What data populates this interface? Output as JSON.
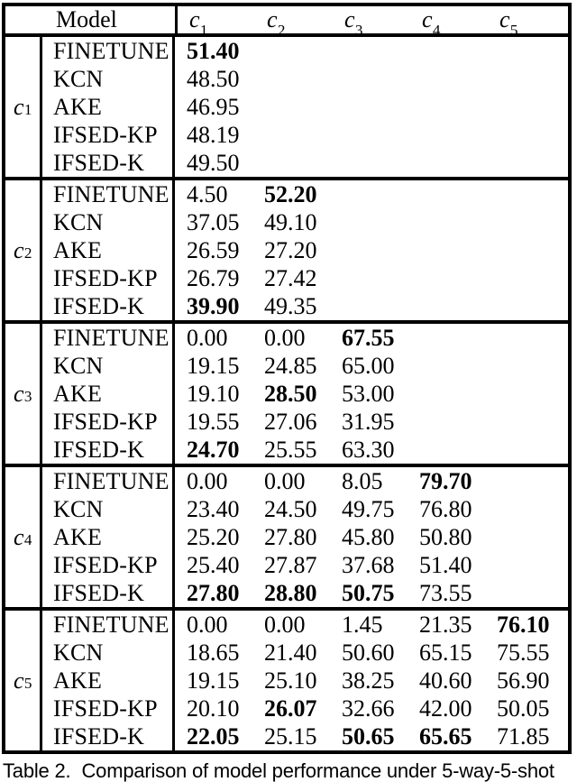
{
  "colors": {
    "background": "#ffffff",
    "text": "#000000",
    "border": "#000000"
  },
  "table": {
    "header": {
      "model_label": "Model",
      "cols": [
        {
          "base": "c",
          "sub": "1"
        },
        {
          "base": "c",
          "sub": "2"
        },
        {
          "base": "c",
          "sub": "3"
        },
        {
          "base": "c",
          "sub": "4"
        },
        {
          "base": "c",
          "sub": "5"
        }
      ]
    },
    "groups": [
      {
        "label": {
          "base": "c",
          "sub": "1"
        },
        "rows": [
          {
            "model": "FINETUNE",
            "cells": [
              {
                "v": "51.40",
                "bold": true
              }
            ]
          },
          {
            "model": "KCN",
            "cells": [
              {
                "v": "48.50",
                "bold": false
              }
            ]
          },
          {
            "model": "AKE",
            "cells": [
              {
                "v": "46.95",
                "bold": false
              }
            ]
          },
          {
            "model": "IFSED-KP",
            "cells": [
              {
                "v": "48.19",
                "bold": false
              }
            ]
          },
          {
            "model": "IFSED-K",
            "cells": [
              {
                "v": "49.50",
                "bold": false
              }
            ]
          }
        ]
      },
      {
        "label": {
          "base": "c",
          "sub": "2"
        },
        "rows": [
          {
            "model": "FINETUNE",
            "cells": [
              {
                "v": "4.50",
                "bold": false
              },
              {
                "v": "52.20",
                "bold": true
              }
            ]
          },
          {
            "model": "KCN",
            "cells": [
              {
                "v": "37.05",
                "bold": false
              },
              {
                "v": "49.10",
                "bold": false
              }
            ]
          },
          {
            "model": "AKE",
            "cells": [
              {
                "v": "26.59",
                "bold": false
              },
              {
                "v": "27.20",
                "bold": false
              }
            ]
          },
          {
            "model": "IFSED-KP",
            "cells": [
              {
                "v": "26.79",
                "bold": false
              },
              {
                "v": "27.42",
                "bold": false
              }
            ]
          },
          {
            "model": "IFSED-K",
            "cells": [
              {
                "v": "39.90",
                "bold": true
              },
              {
                "v": "49.35",
                "bold": false
              }
            ]
          }
        ]
      },
      {
        "label": {
          "base": "c",
          "sub": "3"
        },
        "rows": [
          {
            "model": "FINETUNE",
            "cells": [
              {
                "v": "0.00",
                "bold": false
              },
              {
                "v": "0.00",
                "bold": false
              },
              {
                "v": "67.55",
                "bold": true
              }
            ]
          },
          {
            "model": "KCN",
            "cells": [
              {
                "v": "19.15",
                "bold": false
              },
              {
                "v": "24.85",
                "bold": false
              },
              {
                "v": "65.00",
                "bold": false
              }
            ]
          },
          {
            "model": "AKE",
            "cells": [
              {
                "v": "19.10",
                "bold": false
              },
              {
                "v": "28.50",
                "bold": true
              },
              {
                "v": "53.00",
                "bold": false
              }
            ]
          },
          {
            "model": "IFSED-KP",
            "cells": [
              {
                "v": "19.55",
                "bold": false
              },
              {
                "v": "27.06",
                "bold": false
              },
              {
                "v": "31.95",
                "bold": false
              }
            ]
          },
          {
            "model": "IFSED-K",
            "cells": [
              {
                "v": "24.70",
                "bold": true
              },
              {
                "v": "25.55",
                "bold": false
              },
              {
                "v": "63.30",
                "bold": false
              }
            ]
          }
        ]
      },
      {
        "label": {
          "base": "c",
          "sub": "4"
        },
        "rows": [
          {
            "model": "FINETUNE",
            "cells": [
              {
                "v": "0.00",
                "bold": false
              },
              {
                "v": "0.00",
                "bold": false
              },
              {
                "v": "8.05",
                "bold": false
              },
              {
                "v": "79.70",
                "bold": true
              }
            ]
          },
          {
            "model": "KCN",
            "cells": [
              {
                "v": "23.40",
                "bold": false
              },
              {
                "v": "24.50",
                "bold": false
              },
              {
                "v": "49.75",
                "bold": false
              },
              {
                "v": "76.80",
                "bold": false
              }
            ]
          },
          {
            "model": "AKE",
            "cells": [
              {
                "v": "25.20",
                "bold": false
              },
              {
                "v": "27.80",
                "bold": false
              },
              {
                "v": "45.80",
                "bold": false
              },
              {
                "v": "50.80",
                "bold": false
              }
            ]
          },
          {
            "model": "IFSED-KP",
            "cells": [
              {
                "v": "25.40",
                "bold": false
              },
              {
                "v": "27.87",
                "bold": false
              },
              {
                "v": "37.68",
                "bold": false
              },
              {
                "v": "51.40",
                "bold": false
              }
            ]
          },
          {
            "model": "IFSED-K",
            "cells": [
              {
                "v": "27.80",
                "bold": true
              },
              {
                "v": "28.80",
                "bold": true
              },
              {
                "v": "50.75",
                "bold": true
              },
              {
                "v": "73.55",
                "bold": false
              }
            ]
          }
        ]
      },
      {
        "label": {
          "base": "c",
          "sub": "5"
        },
        "rows": [
          {
            "model": "FINETUNE",
            "cells": [
              {
                "v": "0.00",
                "bold": false
              },
              {
                "v": "0.00",
                "bold": false
              },
              {
                "v": "1.45",
                "bold": false
              },
              {
                "v": "21.35",
                "bold": false
              },
              {
                "v": "76.10",
                "bold": true
              }
            ]
          },
          {
            "model": "KCN",
            "cells": [
              {
                "v": "18.65",
                "bold": false
              },
              {
                "v": "21.40",
                "bold": false
              },
              {
                "v": "50.60",
                "bold": false
              },
              {
                "v": "65.15",
                "bold": false
              },
              {
                "v": "75.55",
                "bold": false
              }
            ]
          },
          {
            "model": "AKE",
            "cells": [
              {
                "v": "19.15",
                "bold": false
              },
              {
                "v": "25.10",
                "bold": false
              },
              {
                "v": "38.25",
                "bold": false
              },
              {
                "v": "40.60",
                "bold": false
              },
              {
                "v": "56.90",
                "bold": false
              }
            ]
          },
          {
            "model": "IFSED-KP",
            "cells": [
              {
                "v": "20.10",
                "bold": false
              },
              {
                "v": "26.07",
                "bold": true
              },
              {
                "v": "32.66",
                "bold": false
              },
              {
                "v": "42.00",
                "bold": false
              },
              {
                "v": "50.05",
                "bold": false
              }
            ]
          },
          {
            "model": "IFSED-K",
            "cells": [
              {
                "v": "22.05",
                "bold": true
              },
              {
                "v": "25.15",
                "bold": false
              },
              {
                "v": "50.65",
                "bold": true
              },
              {
                "v": "65.65",
                "bold": true
              },
              {
                "v": "71.85",
                "bold": false
              }
            ]
          }
        ]
      }
    ]
  },
  "caption": {
    "label": "Table 2.",
    "text": "Comparison of model performance under 5-way-5-shot"
  }
}
